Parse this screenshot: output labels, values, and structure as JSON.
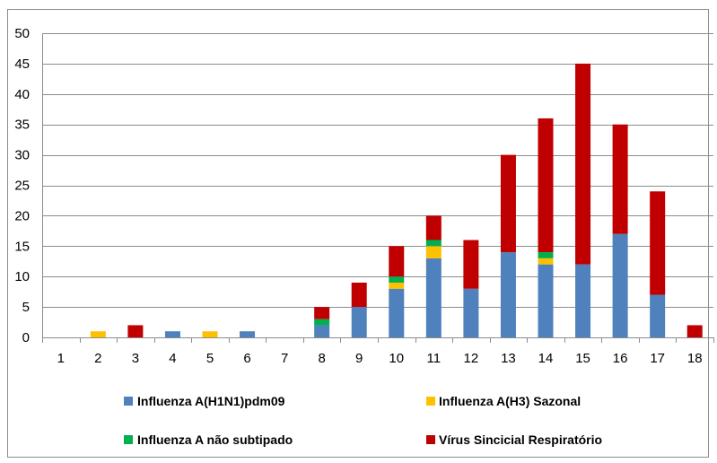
{
  "chart_data": {
    "type": "bar",
    "stacked": true,
    "categories": [
      "1",
      "2",
      "3",
      "4",
      "5",
      "6",
      "7",
      "8",
      "9",
      "10",
      "11",
      "12",
      "13",
      "14",
      "15",
      "16",
      "17",
      "18"
    ],
    "ylim": [
      0,
      50
    ],
    "yticks": [
      "0",
      "5",
      "10",
      "15",
      "20",
      "25",
      "30",
      "35",
      "40",
      "45",
      "50"
    ],
    "grid": "horizontal",
    "legend_position": "bottom",
    "series": [
      {
        "name": "Influenza A(H1N1)pdm09",
        "color": "#4f81bd",
        "values": [
          0,
          0,
          0,
          1,
          0,
          1,
          0,
          2,
          5,
          8,
          13,
          8,
          14,
          12,
          12,
          17,
          7,
          0
        ]
      },
      {
        "name": "Influenza A(H3) Sazonal",
        "color": "#ffc000",
        "values": [
          0,
          1,
          0,
          0,
          1,
          0,
          0,
          0,
          0,
          1,
          2,
          0,
          0,
          1,
          0,
          0,
          0,
          0
        ]
      },
      {
        "name": "Influenza A não subtipado",
        "color": "#00b050",
        "values": [
          0,
          0,
          0,
          0,
          0,
          0,
          0,
          1,
          0,
          1,
          1,
          0,
          0,
          1,
          0,
          0,
          0,
          0
        ]
      },
      {
        "name": "Vírus Sincicial Respiratório",
        "color": "#c00000",
        "values": [
          0,
          0,
          2,
          0,
          0,
          0,
          0,
          2,
          4,
          5,
          4,
          8,
          16,
          22,
          33,
          18,
          17,
          2
        ]
      }
    ]
  }
}
